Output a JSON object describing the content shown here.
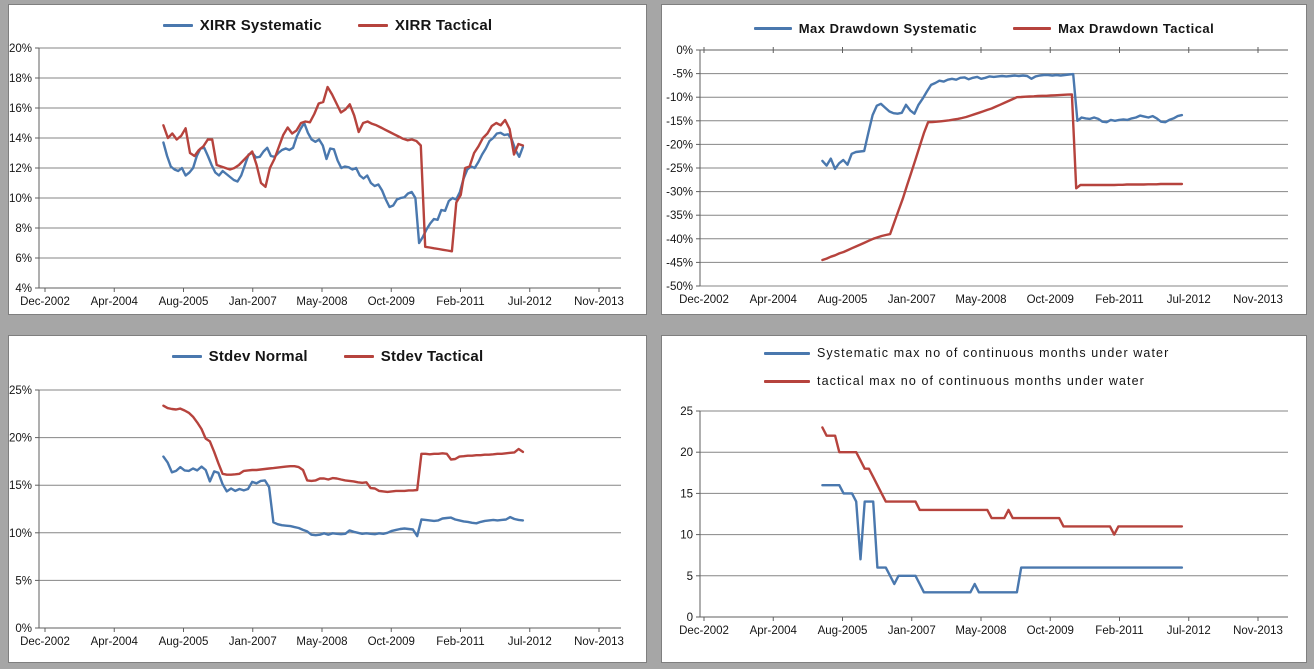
{
  "window": {
    "background_color": "#a6a6a6",
    "panel_background": "#ffffff",
    "panel_border_color": "#7f7f7f",
    "grid_color": "#868686",
    "axis_color": "#5f5f5f",
    "text_color": "#151515"
  },
  "colors": {
    "systematic_blue": "#4a78ae",
    "tactical_red": "#b6433d"
  },
  "x_axis": {
    "tick_labels": [
      "Dec-2002",
      "Apr-2004",
      "Aug-2005",
      "Jan-2007",
      "May-2008",
      "Oct-2009",
      "Feb-2011",
      "Jul-2012",
      "Nov-2013"
    ],
    "total_months": 131,
    "data_month_span": [
      28,
      113
    ]
  },
  "chart_data": [
    {
      "id": "xirr",
      "type": "line",
      "title": "",
      "legend_position": "top-center",
      "xlabel": "",
      "ylabel": "",
      "y_axis": {
        "min": 4,
        "max": 20,
        "tick_labels": [
          "20%",
          "18%",
          "16%",
          "14%",
          "12%",
          "10%",
          "8%",
          "6%",
          "4%"
        ]
      },
      "series": [
        {
          "name": "XIRR Systematic",
          "color_key": "systematic_blue",
          "values": [
            13.7,
            12.8,
            12.1,
            11.9,
            11.8,
            12.0,
            11.5,
            11.7,
            12.0,
            12.8,
            13.3,
            13.35,
            12.8,
            12.2,
            11.7,
            11.5,
            11.8,
            11.6,
            11.4,
            11.2,
            11.1,
            11.5,
            12.2,
            12.9,
            13.0,
            12.7,
            12.75,
            13.1,
            13.35,
            12.8,
            12.75,
            13.0,
            13.2,
            13.3,
            13.2,
            13.35,
            14.1,
            14.6,
            15.0,
            14.35,
            13.9,
            13.75,
            13.9,
            13.5,
            12.6,
            13.3,
            13.25,
            12.5,
            12.0,
            12.1,
            12.05,
            11.9,
            12.0,
            11.5,
            11.3,
            11.5,
            11.0,
            10.8,
            10.9,
            10.5,
            9.9,
            9.4,
            9.5,
            9.9,
            10.0,
            10.05,
            10.3,
            10.4,
            10.0,
            7.0,
            7.4,
            7.9,
            8.3,
            8.6,
            8.55,
            9.2,
            9.15,
            9.8,
            10.0,
            9.9,
            10.4,
            11.3,
            11.9,
            12.1,
            12.0,
            12.4,
            12.9,
            13.3,
            13.8,
            14.0,
            14.3,
            14.35,
            14.2,
            14.25,
            13.9,
            13.2,
            12.75,
            13.4
          ]
        },
        {
          "name": "XIRR Tactical",
          "color_key": "tactical_red",
          "values": [
            14.85,
            14.0,
            14.3,
            13.9,
            14.15,
            14.65,
            13.0,
            12.8,
            13.2,
            13.45,
            13.9,
            13.9,
            12.2,
            12.1,
            12.0,
            11.9,
            12.0,
            12.2,
            12.5,
            12.8,
            13.1,
            12.2,
            11.0,
            10.75,
            12.0,
            12.6,
            13.4,
            14.2,
            14.7,
            14.3,
            14.5,
            15.0,
            15.1,
            15.05,
            15.6,
            16.3,
            16.4,
            17.4,
            16.9,
            16.3,
            15.7,
            15.9,
            16.25,
            15.5,
            14.4,
            15.0,
            15.1,
            14.95,
            14.85,
            14.7,
            14.55,
            14.4,
            14.25,
            14.1,
            13.95,
            13.85,
            13.9,
            13.8,
            13.5,
            6.75,
            6.7,
            6.65,
            6.6,
            6.55,
            6.5,
            6.45,
            9.7,
            10.2,
            12.0,
            12.1,
            13.0,
            13.45,
            14.0,
            14.3,
            14.8,
            15.0,
            14.85,
            15.2,
            14.6,
            12.9,
            13.6,
            13.5
          ]
        }
      ]
    },
    {
      "id": "max-drawdown",
      "type": "line",
      "title": "",
      "legend_position": "top-center",
      "xlabel": "",
      "ylabel": "",
      "y_axis": {
        "min": -50,
        "max": 0,
        "tick_labels": [
          "0%",
          "-5%",
          "-10%",
          "-15%",
          "-20%",
          "-25%",
          "-30%",
          "-35%",
          "-40%",
          "-45%",
          "-50%"
        ]
      },
      "series": [
        {
          "name": "Max Drawdown Systematic",
          "color_key": "systematic_blue",
          "values": [
            -23.5,
            -24.5,
            -23.0,
            -25.2,
            -24.0,
            -23.3,
            -24.3,
            -22.0,
            -21.6,
            -21.5,
            -21.4,
            -17.5,
            -13.8,
            -11.8,
            -11.4,
            -12.2,
            -13.0,
            -13.4,
            -13.5,
            -13.3,
            -11.6,
            -12.8,
            -13.5,
            -11.6,
            -10.3,
            -8.8,
            -7.4,
            -7.0,
            -6.5,
            -6.7,
            -6.3,
            -6.1,
            -6.3,
            -5.9,
            -5.8,
            -6.2,
            -5.9,
            -5.7,
            -6.1,
            -5.9,
            -5.6,
            -5.7,
            -5.6,
            -5.5,
            -5.6,
            -5.5,
            -5.4,
            -5.5,
            -5.4,
            -5.5,
            -6.1,
            -5.6,
            -5.4,
            -5.3,
            -5.3,
            -5.4,
            -5.3,
            -5.4,
            -5.3,
            -5.2,
            -5.1,
            -15.0,
            -14.3,
            -14.5,
            -14.6,
            -14.3,
            -14.6,
            -15.2,
            -15.3,
            -14.8,
            -15.0,
            -14.8,
            -14.7,
            -14.8,
            -14.5,
            -14.3,
            -13.9,
            -14.1,
            -14.3,
            -14.0,
            -14.5,
            -15.2,
            -15.3,
            -14.8,
            -14.5,
            -14.0,
            -13.8
          ]
        },
        {
          "name": "Max Drawdown Tactical",
          "color_key": "tactical_red",
          "values": [
            -44.5,
            -44.2,
            -43.8,
            -43.5,
            -43.1,
            -42.8,
            -42.4,
            -42.0,
            -41.6,
            -41.2,
            -40.8,
            -40.4,
            -40.0,
            -39.7,
            -39.4,
            -39.2,
            -39.0,
            -36.5,
            -34.0,
            -31.5,
            -28.7,
            -26.0,
            -23.2,
            -20.4,
            -17.6,
            -15.3,
            -15.25,
            -15.2,
            -15.1,
            -15.0,
            -14.9,
            -14.75,
            -14.6,
            -14.4,
            -14.2,
            -13.9,
            -13.6,
            -13.3,
            -13.0,
            -12.7,
            -12.4,
            -12.0,
            -11.6,
            -11.2,
            -10.8,
            -10.4,
            -10.0,
            -9.95,
            -9.9,
            -9.85,
            -9.8,
            -9.75,
            -9.7,
            -9.7,
            -9.65,
            -9.6,
            -9.55,
            -9.5,
            -9.45,
            -9.4,
            -29.3,
            -28.6,
            -28.6,
            -28.6,
            -28.6,
            -28.6,
            -28.6,
            -28.6,
            -28.6,
            -28.6,
            -28.55,
            -28.55,
            -28.5,
            -28.5,
            -28.5,
            -28.5,
            -28.5,
            -28.45,
            -28.45,
            -28.45,
            -28.4,
            -28.4,
            -28.4,
            -28.4,
            -28.4,
            -28.4
          ]
        }
      ]
    },
    {
      "id": "stdev",
      "type": "line",
      "title": "",
      "legend_position": "top-center",
      "xlabel": "",
      "ylabel": "",
      "y_axis": {
        "min": 0,
        "max": 25,
        "tick_labels": [
          "25%",
          "20%",
          "15%",
          "10%",
          "5%",
          "0%"
        ]
      },
      "series": [
        {
          "name": "Stdev Normal",
          "color_key": "systematic_blue",
          "values": [
            18.0,
            17.4,
            16.35,
            16.5,
            16.9,
            16.55,
            16.5,
            16.75,
            16.55,
            16.95,
            16.6,
            15.4,
            16.45,
            16.3,
            15.1,
            14.35,
            14.65,
            14.4,
            14.6,
            14.45,
            14.6,
            15.35,
            15.2,
            15.45,
            15.5,
            14.8,
            11.1,
            10.9,
            10.8,
            10.75,
            10.7,
            10.6,
            10.5,
            10.3,
            10.15,
            9.8,
            9.75,
            9.8,
            9.95,
            9.8,
            9.95,
            9.9,
            9.85,
            9.9,
            10.25,
            10.1,
            10.0,
            9.9,
            9.95,
            9.9,
            9.85,
            9.95,
            9.9,
            10.0,
            10.2,
            10.3,
            10.4,
            10.45,
            10.4,
            10.35,
            9.65,
            11.4,
            11.35,
            11.3,
            11.25,
            11.3,
            11.5,
            11.55,
            11.6,
            11.4,
            11.3,
            11.2,
            11.15,
            11.05,
            11.0,
            11.15,
            11.25,
            11.3,
            11.35,
            11.3,
            11.35,
            11.4,
            11.65,
            11.45,
            11.35,
            11.3
          ]
        },
        {
          "name": "Stdev Tactical",
          "color_key": "tactical_red",
          "values": [
            23.35,
            23.1,
            23.0,
            22.95,
            23.05,
            22.85,
            22.6,
            22.2,
            21.6,
            20.9,
            19.9,
            19.6,
            18.5,
            17.3,
            16.2,
            16.1,
            16.1,
            16.15,
            16.2,
            16.5,
            16.55,
            16.6,
            16.6,
            16.65,
            16.7,
            16.75,
            16.8,
            16.85,
            16.9,
            16.95,
            17.0,
            17.0,
            16.9,
            16.6,
            15.5,
            15.45,
            15.5,
            15.7,
            15.7,
            15.6,
            15.75,
            15.7,
            15.6,
            15.5,
            15.45,
            15.4,
            15.3,
            15.25,
            15.3,
            14.7,
            14.65,
            14.4,
            14.35,
            14.3,
            14.35,
            14.4,
            14.4,
            14.4,
            14.45,
            14.45,
            14.5,
            18.3,
            18.3,
            18.25,
            18.3,
            18.3,
            18.35,
            18.3,
            17.7,
            17.75,
            18.0,
            18.05,
            18.1,
            18.1,
            18.15,
            18.15,
            18.2,
            18.2,
            18.25,
            18.3,
            18.3,
            18.35,
            18.4,
            18.45,
            18.8,
            18.5
          ]
        }
      ]
    },
    {
      "id": "underwater-months",
      "type": "line",
      "title": "",
      "legend_position": "top-left-stacked",
      "xlabel": "",
      "ylabel": "",
      "y_axis": {
        "min": 0,
        "max": 25,
        "tick_labels": [
          "25",
          "20",
          "15",
          "10",
          "5",
          "0"
        ]
      },
      "series": [
        {
          "name": "Systematic max no of continuous months under water",
          "color_key": "systematic_blue",
          "values": [
            16,
            16,
            16,
            16,
            16,
            15,
            15,
            15,
            14,
            7,
            14,
            14,
            14,
            6,
            6,
            6,
            5,
            4,
            5,
            5,
            5,
            5,
            5,
            4,
            3,
            3,
            3,
            3,
            3,
            3,
            3,
            3,
            3,
            3,
            3,
            3,
            4,
            3,
            3,
            3,
            3,
            3,
            3,
            3,
            3,
            3,
            3,
            6,
            6,
            6,
            6,
            6,
            6,
            6,
            6,
            6,
            6,
            6,
            6,
            6,
            6,
            6,
            6,
            6,
            6,
            6,
            6,
            6,
            6,
            6,
            6,
            6,
            6,
            6,
            6,
            6,
            6,
            6,
            6,
            6,
            6,
            6,
            6,
            6,
            6,
            6
          ]
        },
        {
          "name": "tactical max no of continuous months under water",
          "color_key": "tactical_red",
          "values": [
            23,
            22,
            22,
            22,
            20,
            20,
            20,
            20,
            20,
            19,
            18,
            18,
            17,
            16,
            15,
            14,
            14,
            14,
            14,
            14,
            14,
            14,
            14,
            13,
            13,
            13,
            13,
            13,
            13,
            13,
            13,
            13,
            13,
            13,
            13,
            13,
            13,
            13,
            13,
            13,
            12,
            12,
            12,
            12,
            13,
            12,
            12,
            12,
            12,
            12,
            12,
            12,
            12,
            12,
            12,
            12,
            12,
            11,
            11,
            11,
            11,
            11,
            11,
            11,
            11,
            11,
            11,
            11,
            11,
            10,
            11,
            11,
            11,
            11,
            11,
            11,
            11,
            11,
            11,
            11,
            11,
            11,
            11,
            11,
            11,
            11
          ]
        }
      ]
    }
  ]
}
